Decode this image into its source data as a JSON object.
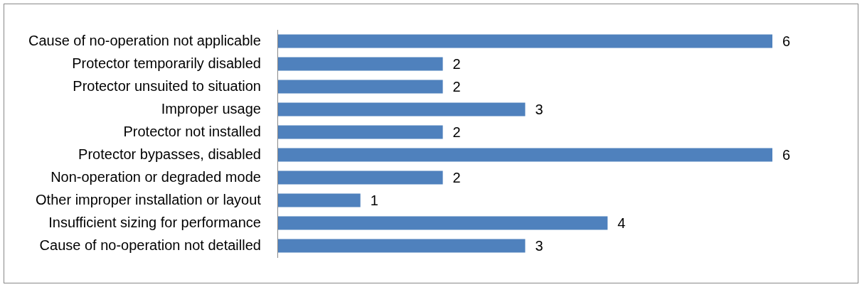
{
  "chart_data": {
    "type": "bar",
    "orientation": "horizontal",
    "categories": [
      "Cause of no-operation not applicable",
      "Protector temporarily disabled",
      "Protector unsuited to situation",
      "Improper usage",
      "Protector not installed",
      "Protector bypasses, disabled",
      "Non-operation or degraded mode",
      "Other improper installation or layout",
      "Insufficient sizing for performance",
      "Cause of no-operation not detailled"
    ],
    "values": [
      6,
      2,
      2,
      3,
      2,
      6,
      2,
      1,
      4,
      3
    ],
    "color": "#4f81bd",
    "data_labels": true,
    "tick_labels": "y"
  }
}
